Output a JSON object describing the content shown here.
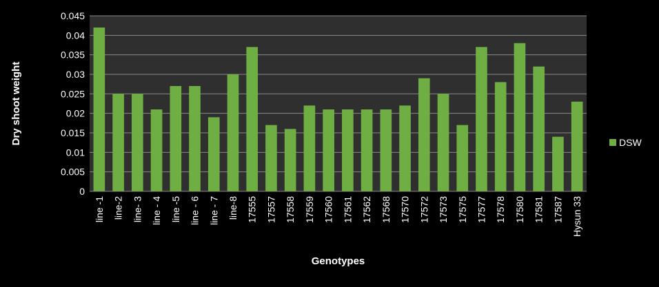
{
  "chart_data": {
    "type": "bar",
    "xlabel": "Genotypes",
    "ylabel": "Dry shoot weight",
    "ylim": [
      0,
      0.045
    ],
    "yticks": [
      "0",
      "0.005",
      "0.01",
      "0.015",
      "0.02",
      "0.025",
      "0.03",
      "0.035",
      "0.04",
      "0.045"
    ],
    "grid": true,
    "legend_position": "right",
    "categories": [
      "line -1",
      "line-2",
      "line- 3",
      "line - 4",
      "line -5",
      "line - 6",
      "line - 7",
      "line-8",
      "17555",
      "17557",
      "17558",
      "17559",
      "17560",
      "17561",
      "17562",
      "17568",
      "17570",
      "17572",
      "17573",
      "17575",
      "17577",
      "17578",
      "17580",
      "17581",
      "17587",
      "Hysun 33"
    ],
    "series": [
      {
        "name": "DSW",
        "color": "#6fae43",
        "values": [
          0.042,
          0.025,
          0.025,
          0.021,
          0.027,
          0.027,
          0.019,
          0.03,
          0.037,
          0.017,
          0.016,
          0.022,
          0.021,
          0.021,
          0.021,
          0.021,
          0.022,
          0.029,
          0.025,
          0.017,
          0.037,
          0.028,
          0.038,
          0.032,
          0.014,
          0.023
        ]
      }
    ],
    "colors": {
      "background": "#000000",
      "plot_area": "#2f2f2f",
      "gridline": "#8a8a8a"
    }
  }
}
